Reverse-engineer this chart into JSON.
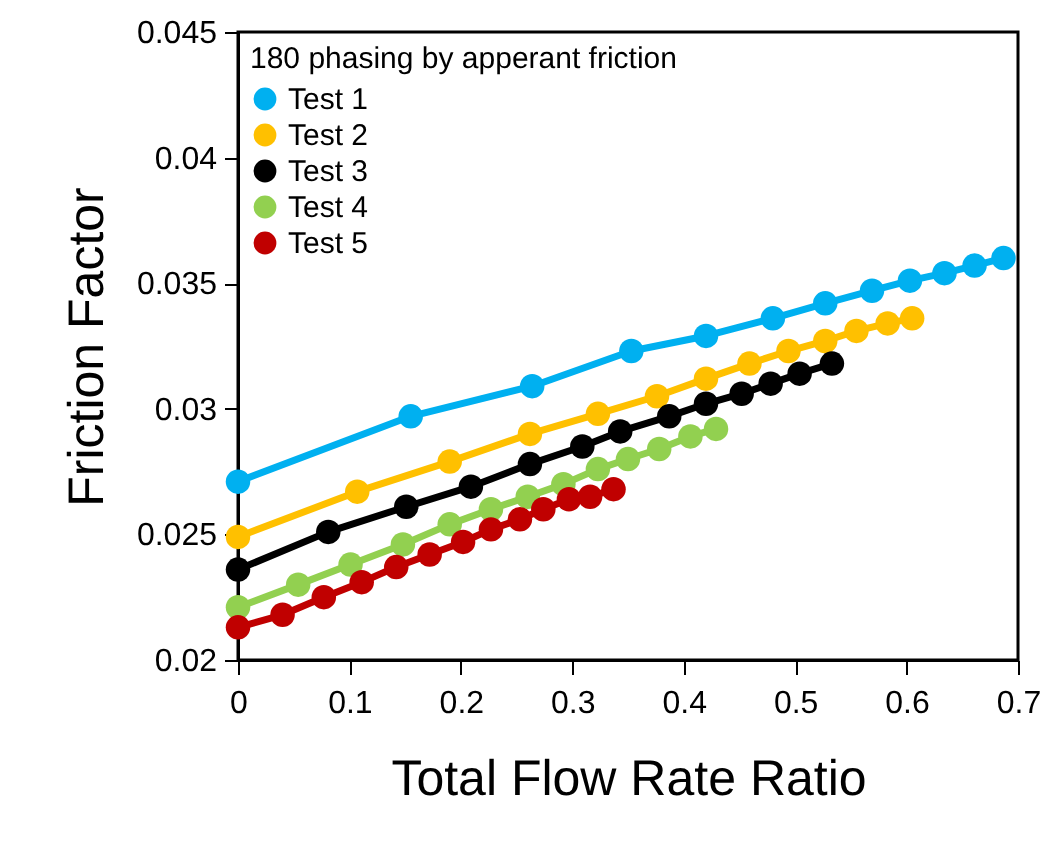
{
  "chart_data": {
    "type": "line",
    "xlabel": "Total Flow Rate Ratio",
    "ylabel": "Friction Factor",
    "legend_title": "180  phasing by apperant friction",
    "legend": "top left",
    "marker": "circle",
    "line_style": "solid",
    "grid": false,
    "xlim": [
      0,
      0.7
    ],
    "xticks": [
      0,
      0.1,
      0.2,
      0.3,
      0.4,
      0.5,
      0.6,
      0.7
    ],
    "ylim": [
      0.02,
      0.045
    ],
    "yticks": [
      0.02,
      0.025,
      0.03,
      0.035,
      0.04,
      0.045
    ],
    "series": [
      {
        "name": "Test 1",
        "color": "#00b0f0",
        "x": [
          0,
          0.155,
          0.264,
          0.353,
          0.42,
          0.48,
          0.527,
          0.569,
          0.603,
          0.634,
          0.661,
          0.687
        ],
        "values": [
          0.0271,
          0.0297,
          0.0309,
          0.0323,
          0.0329,
          0.0336,
          0.0342,
          0.0347,
          0.0351,
          0.0354,
          0.0357,
          0.036
        ]
      },
      {
        "name": "Test 2",
        "color": "#ffc000",
        "x": [
          0,
          0.107,
          0.19,
          0.262,
          0.323,
          0.376,
          0.42,
          0.459,
          0.494,
          0.527,
          0.555,
          0.583,
          0.605
        ],
        "values": [
          0.0249,
          0.0267,
          0.0279,
          0.029,
          0.0298,
          0.0305,
          0.0312,
          0.0318,
          0.0323,
          0.0327,
          0.0331,
          0.0334,
          0.0336
        ]
      },
      {
        "name": "Test 3",
        "color": "#000000",
        "x": [
          0,
          0.081,
          0.151,
          0.209,
          0.262,
          0.309,
          0.343,
          0.387,
          0.42,
          0.452,
          0.478,
          0.504,
          0.533
        ],
        "values": [
          0.0236,
          0.0251,
          0.0261,
          0.0269,
          0.0278,
          0.0285,
          0.0291,
          0.0297,
          0.0302,
          0.0306,
          0.031,
          0.0314,
          0.0318
        ]
      },
      {
        "name": "Test 4",
        "color": "#92d050",
        "x": [
          0,
          0.054,
          0.101,
          0.148,
          0.19,
          0.227,
          0.26,
          0.292,
          0.323,
          0.35,
          0.378,
          0.406,
          0.429
        ],
        "values": [
          0.0221,
          0.023,
          0.0238,
          0.0246,
          0.0254,
          0.026,
          0.0265,
          0.027,
          0.0276,
          0.028,
          0.0284,
          0.0289,
          0.0292
        ]
      },
      {
        "name": "Test 5",
        "color": "#c00000",
        "x": [
          0,
          0.04,
          0.077,
          0.111,
          0.142,
          0.172,
          0.202,
          0.227,
          0.253,
          0.274,
          0.297,
          0.316,
          0.337
        ],
        "values": [
          0.0213,
          0.0218,
          0.0225,
          0.0231,
          0.0237,
          0.0242,
          0.0247,
          0.0252,
          0.0256,
          0.026,
          0.0264,
          0.0265,
          0.0268
        ]
      }
    ]
  }
}
